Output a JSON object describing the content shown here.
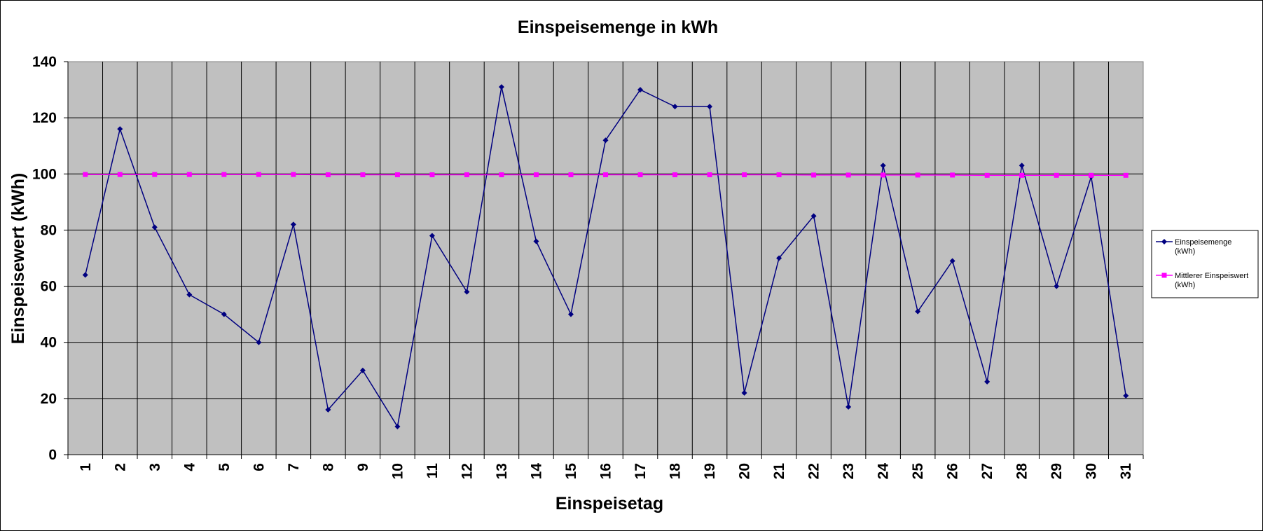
{
  "chart_data": {
    "type": "line",
    "title": "Einspeisemenge in kWh",
    "xlabel": "Einspeisetag",
    "ylabel": "Einspeisewert  (kWh)",
    "categories": [
      "1",
      "2",
      "3",
      "4",
      "5",
      "6",
      "7",
      "8",
      "9",
      "10",
      "11",
      "12",
      "13",
      "14",
      "15",
      "16",
      "17",
      "18",
      "19",
      "20",
      "21",
      "22",
      "23",
      "24",
      "25",
      "26",
      "27",
      "28",
      "29",
      "30",
      "31"
    ],
    "ylim": [
      0,
      140
    ],
    "yticks": [
      0,
      20,
      40,
      60,
      80,
      100,
      120,
      140
    ],
    "grid": true,
    "legend": "right",
    "series": [
      {
        "name": "Einspeisemenge (kWh)",
        "legend_lines": [
          "Einspeisemenge",
          "(kWh)"
        ],
        "color": "#000080",
        "marker": "diamond",
        "values": [
          64,
          116,
          81,
          57,
          50,
          40,
          82,
          16,
          30,
          10,
          78,
          58,
          131,
          76,
          50,
          112,
          130,
          124,
          124,
          22,
          70,
          85,
          17,
          103,
          51,
          69,
          26,
          103,
          60,
          99,
          21
        ]
      },
      {
        "name": "Mittlerer Einspeiswert (kWh)",
        "legend_lines": [
          "Mittlerer Einspeiswert",
          "(kWh)"
        ],
        "color": "#ff00ff",
        "marker": "square",
        "values": [
          99.8,
          99.8,
          99.8,
          99.8,
          99.8,
          99.8,
          99.8,
          99.7,
          99.7,
          99.7,
          99.7,
          99.7,
          99.7,
          99.7,
          99.7,
          99.7,
          99.7,
          99.7,
          99.7,
          99.7,
          99.7,
          99.6,
          99.6,
          99.6,
          99.6,
          99.6,
          99.5,
          99.5,
          99.5,
          99.5,
          99.5
        ]
      }
    ]
  }
}
